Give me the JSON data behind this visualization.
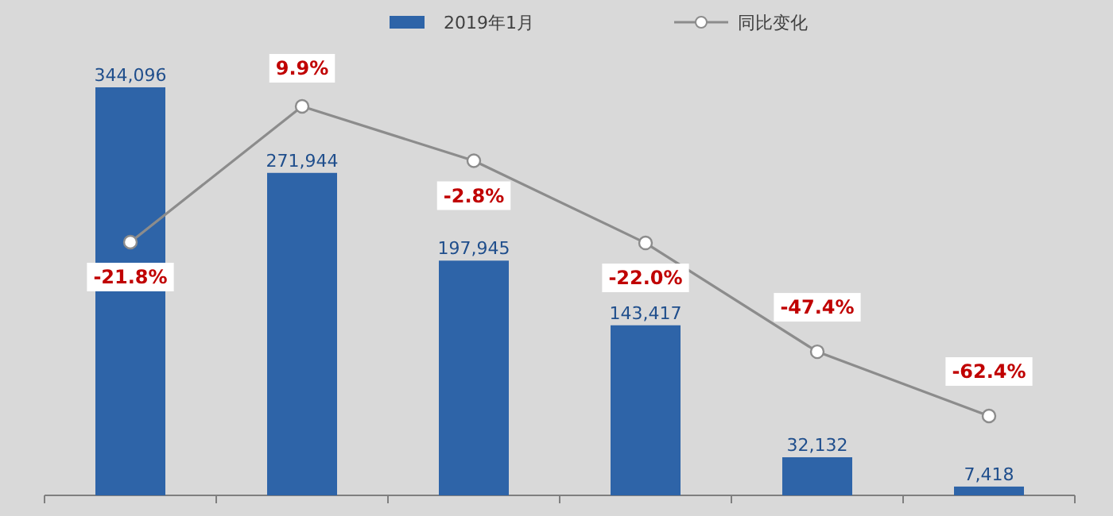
{
  "chart_data": [
    {
      "type": "bar",
      "categories": [
        null,
        null,
        null,
        null,
        null,
        null
      ],
      "legend": "top",
      "series": [
        {
          "name": "2019年1月",
          "color": "#2e64a8",
          "values": [
            344096,
            271944,
            197945,
            143417,
            32132,
            7418
          ],
          "value_labels": [
            "344,096",
            "271,944",
            "197,945",
            "143,417",
            "32,132",
            "7,418"
          ]
        }
      ]
    },
    {
      "type": "line",
      "categories": [
        null,
        null,
        null,
        null,
        null,
        null
      ],
      "legend": "top",
      "marker": "circle",
      "series": [
        {
          "name": "同比变化",
          "color": "#8c8c8c",
          "values": [
            -21.8,
            9.9,
            -2.8,
            -22.0,
            -47.4,
            -62.4
          ],
          "value_labels": [
            "-21.8%",
            "9.9%",
            "-2.8%",
            "-22.0%",
            "-47.4%",
            "-62.4%"
          ]
        }
      ]
    }
  ]
}
